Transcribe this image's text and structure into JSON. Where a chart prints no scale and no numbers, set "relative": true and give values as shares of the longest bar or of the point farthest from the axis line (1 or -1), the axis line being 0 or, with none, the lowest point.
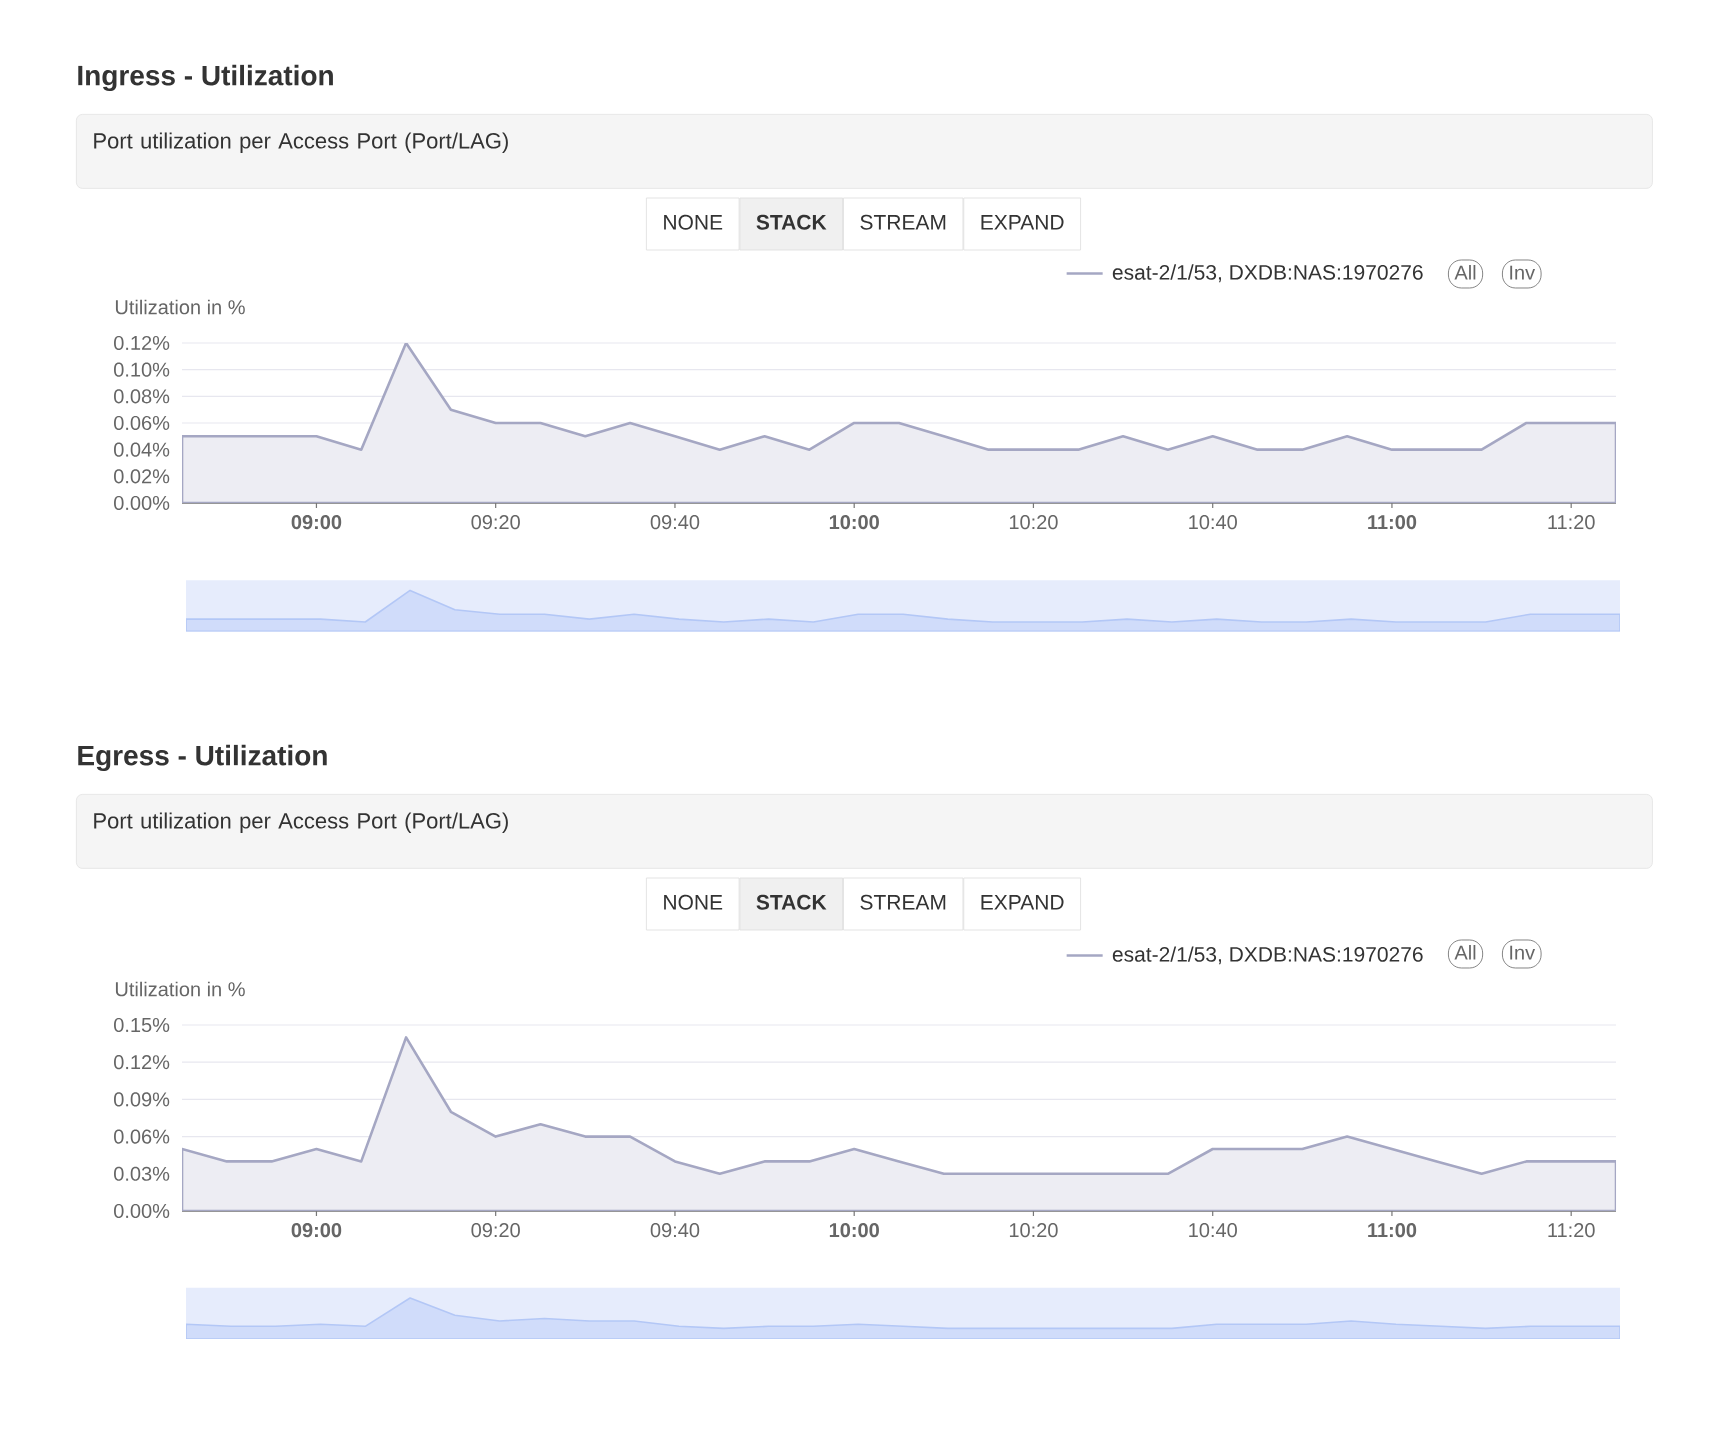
{
  "chart_data": [
    {
      "type": "area",
      "title": "Ingress - Utilization",
      "subtitle": "Port utilization per Access Port (Port/LAG)",
      "annotations": [
        "NONE",
        "STACK",
        "STREAM",
        "EXPAND",
        "All",
        "Inv"
      ],
      "ylabel": "Utilization in %",
      "x": [
        8.75,
        8.8333,
        8.9167,
        9,
        9.0833,
        9.1667,
        9.25,
        9.3333,
        9.4167,
        9.5,
        9.5833,
        9.6667,
        9.75,
        9.8333,
        9.9167,
        10,
        10.0833,
        10.1667,
        10.25,
        10.3333,
        10.4167,
        10.5,
        10.5833,
        10.6667,
        10.75,
        10.8333,
        10.9167,
        11,
        11.0833,
        11.1667,
        11.25,
        11.3333,
        11.4167
      ],
      "xlim": [
        8.75,
        11.4167
      ],
      "xticks": [
        {
          "value": 9,
          "label": "09:00"
        },
        {
          "value": 9.3333,
          "label": "09:20"
        },
        {
          "value": 9.6667,
          "label": "09:40"
        },
        {
          "value": 10,
          "label": "10:00"
        },
        {
          "value": 10.3333,
          "label": "10:20"
        },
        {
          "value": 10.6667,
          "label": "10:40"
        },
        {
          "value": 11,
          "label": "11:00"
        },
        {
          "value": 11.3333,
          "label": "11:20"
        }
      ],
      "ylim": [
        0,
        0.12
      ],
      "yticks": [
        {
          "value": 0,
          "label": "0.00%"
        },
        {
          "value": 0.02,
          "label": "0.02%"
        },
        {
          "value": 0.04,
          "label": "0.04%"
        },
        {
          "value": 0.06,
          "label": "0.06%"
        },
        {
          "value": 0.08,
          "label": "0.08%"
        },
        {
          "value": 0.1,
          "label": "0.10%"
        },
        {
          "value": 0.12,
          "label": "0.12%"
        }
      ],
      "grid": "y",
      "legend": "top right",
      "series": [
        {
          "name": "esat-2/1/53, DXDB:NAS:1970276",
          "color": "#a5a7c3",
          "values": [
            0.05,
            0.05,
            0.05,
            0.05,
            0.04,
            0.12,
            0.07,
            0.06,
            0.06,
            0.05,
            0.06,
            0.05,
            0.04,
            0.05,
            0.04,
            0.06,
            0.06,
            0.05,
            0.04,
            0.04,
            0.04,
            0.05,
            0.04,
            0.05,
            0.04,
            0.04,
            0.05,
            0.04,
            0.04,
            0.04,
            0.06,
            0.06,
            0.06
          ]
        }
      ]
    },
    {
      "type": "area",
      "relative": true,
      "categories": [
        null,
        null,
        null,
        null,
        null,
        null,
        null,
        null,
        null,
        null,
        null,
        null,
        null,
        null,
        null,
        null,
        null,
        null,
        null,
        null,
        null,
        null,
        null,
        null,
        null,
        null,
        null,
        null,
        null,
        null,
        null,
        null,
        null
      ],
      "series": [
        {
          "color": "#d0dcfa",
          "values": [
            0.3,
            0.3,
            0.3,
            0.3,
            0.23,
            1,
            0.53,
            0.42,
            0.42,
            0.3,
            0.42,
            0.3,
            0.23,
            0.3,
            0.23,
            0.42,
            0.42,
            0.3,
            0.23,
            0.23,
            0.23,
            0.3,
            0.23,
            0.3,
            0.23,
            0.23,
            0.3,
            0.23,
            0.23,
            0.23,
            0.42,
            0.42,
            0.42
          ]
        }
      ]
    },
    {
      "type": "area",
      "title": "Egress - Utilization",
      "subtitle": "Port utilization per Access Port (Port/LAG)",
      "annotations": [
        "NONE",
        "STACK",
        "STREAM",
        "EXPAND",
        "All",
        "Inv"
      ],
      "ylabel": "Utilization in %",
      "x": [
        8.75,
        8.8333,
        8.9167,
        9,
        9.0833,
        9.1667,
        9.25,
        9.3333,
        9.4167,
        9.5,
        9.5833,
        9.6667,
        9.75,
        9.8333,
        9.9167,
        10,
        10.0833,
        10.1667,
        10.25,
        10.3333,
        10.4167,
        10.5,
        10.5833,
        10.6667,
        10.75,
        10.8333,
        10.9167,
        11,
        11.0833,
        11.1667,
        11.25,
        11.3333,
        11.4167
      ],
      "xlim": [
        8.75,
        11.4167
      ],
      "xticks": [
        {
          "value": 9,
          "label": "09:00"
        },
        {
          "value": 9.3333,
          "label": "09:20"
        },
        {
          "value": 9.6667,
          "label": "09:40"
        },
        {
          "value": 10,
          "label": "10:00"
        },
        {
          "value": 10.3333,
          "label": "10:20"
        },
        {
          "value": 10.6667,
          "label": "10:40"
        },
        {
          "value": 11,
          "label": "11:00"
        },
        {
          "value": 11.3333,
          "label": "11:20"
        }
      ],
      "ylim": [
        0,
        0.15
      ],
      "yticks": [
        {
          "value": 0,
          "label": "0.00%"
        },
        {
          "value": 0.03,
          "label": "0.03%"
        },
        {
          "value": 0.06,
          "label": "0.06%"
        },
        {
          "value": 0.09,
          "label": "0.09%"
        },
        {
          "value": 0.12,
          "label": "0.12%"
        },
        {
          "value": 0.15,
          "label": "0.15%"
        }
      ],
      "grid": "y",
      "legend": "top right",
      "series": [
        {
          "name": "esat-2/1/53, DXDB:NAS:1970276",
          "color": "#a5a7c3",
          "values": [
            0.05,
            0.04,
            0.04,
            0.05,
            0.04,
            0.14,
            0.08,
            0.06,
            0.07,
            0.06,
            0.06,
            0.04,
            0.03,
            0.04,
            0.04,
            0.05,
            0.04,
            0.03,
            0.03,
            0.03,
            0.03,
            0.03,
            0.03,
            0.05,
            0.05,
            0.05,
            0.06,
            0.05,
            0.04,
            0.03,
            0.04,
            0.04,
            0.04
          ]
        }
      ]
    },
    {
      "type": "area",
      "relative": true,
      "categories": [
        null,
        null,
        null,
        null,
        null,
        null,
        null,
        null,
        null,
        null,
        null,
        null,
        null,
        null,
        null,
        null,
        null,
        null,
        null,
        null,
        null,
        null,
        null,
        null,
        null,
        null,
        null,
        null,
        null,
        null,
        null,
        null,
        null
      ],
      "series": [
        {
          "color": "#d0dcfa",
          "values": [
            0.36,
            0.31,
            0.31,
            0.36,
            0.31,
            1,
            0.58,
            0.44,
            0.5,
            0.44,
            0.44,
            0.31,
            0.26,
            0.31,
            0.31,
            0.36,
            0.31,
            0.26,
            0.26,
            0.26,
            0.26,
            0.26,
            0.26,
            0.36,
            0.36,
            0.36,
            0.44,
            0.36,
            0.31,
            0.26,
            0.31,
            0.31,
            0.31
          ]
        }
      ]
    }
  ]
}
